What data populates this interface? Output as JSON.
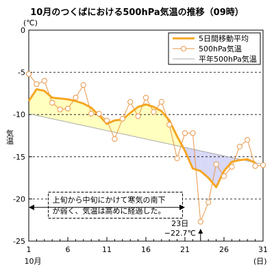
{
  "chart_data": {
    "type": "line",
    "title": "10月のつくばにおける500hPa気温の推移（09時）",
    "ylabel": "気温",
    "yunit": "(℃)",
    "xunit": "(日)",
    "xmonth": "10月",
    "xlim": [
      1,
      31
    ],
    "ylim": [
      -25,
      0
    ],
    "yticks": [
      0,
      -5,
      -10,
      -15,
      -20,
      -25
    ],
    "xticks": [
      1,
      6,
      11,
      16,
      21,
      26,
      31
    ],
    "grid": "horizontal-dashed",
    "legend_position": "top-right",
    "colors": {
      "moving_average": "#f5a623",
      "daily": "#e8974a",
      "normal": "#aaaaaa",
      "warm_fill": "#ffffc0",
      "cold_fill": "#d8d8f8",
      "arrow": "#000000"
    },
    "series": [
      {
        "name": "5日間移動平均",
        "x": [
          1,
          2,
          3,
          4,
          5,
          6,
          7,
          8,
          9,
          10,
          11,
          12,
          13,
          14,
          15,
          16,
          17,
          18,
          19,
          20,
          21,
          22,
          23,
          24,
          25,
          26,
          27,
          28,
          29,
          30,
          31
        ],
        "values": [
          -8.4,
          -7.0,
          -7.2,
          -8.0,
          -8.1,
          -8.2,
          -8.4,
          -8.7,
          -9.2,
          -10.1,
          -11.1,
          -10.7,
          -10.6,
          -9.8,
          -9.1,
          -8.8,
          -9.1,
          -9.6,
          -10.7,
          -12.6,
          -14.3,
          -16.4,
          -16.7,
          -17.5,
          -18.6,
          -16.7,
          -15.6,
          -15.4,
          -15.3,
          -15.7,
          null
        ]
      },
      {
        "name": "500hPa気温",
        "x": [
          1,
          2,
          3,
          4,
          5,
          6,
          7,
          8,
          9,
          10,
          11,
          12,
          13,
          14,
          15,
          16,
          17,
          18,
          19,
          20,
          21,
          22,
          23,
          24,
          25,
          26,
          27,
          28,
          29,
          30,
          31
        ],
        "values": [
          -5.2,
          -6.4,
          -6.0,
          -8.6,
          -9.4,
          -9.3,
          -8.0,
          -6.5,
          -9.9,
          -9.9,
          -10.7,
          -12.9,
          -10.5,
          -8.5,
          -10.2,
          -8.0,
          -9.7,
          -8.5,
          -11.2,
          -15.2,
          -12.2,
          -12.2,
          -22.7,
          -20.4,
          -15.9,
          -17.3,
          -16.2,
          -13.8,
          -13.0,
          -16.1,
          -16.0
        ]
      },
      {
        "name": "平年500hPa気温",
        "x": [
          1,
          31
        ],
        "values": [
          -9.9,
          -15.9
        ]
      }
    ],
    "annotations": [
      {
        "text_lines": [
          "上旬から中旬にかけて寒気の南下",
          "が弱く、気温は高めに経過した。"
        ],
        "x_range": [
          1,
          21
        ],
        "y": -21
      },
      {
        "text_lines": [
          "23日",
          "−22.7℃"
        ],
        "x": 23
      }
    ]
  }
}
